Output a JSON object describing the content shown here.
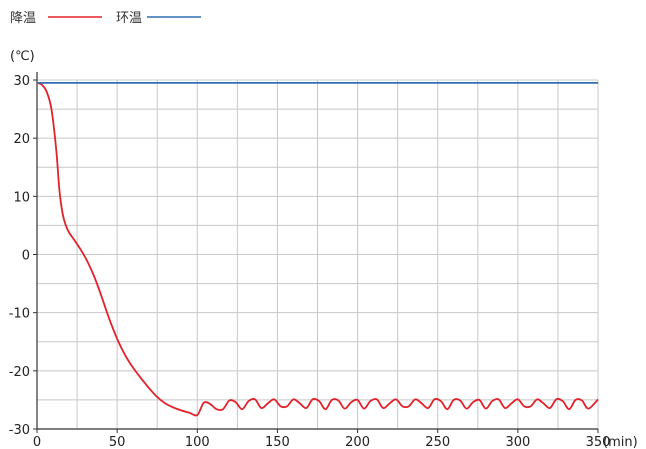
{
  "chart_data": {
    "type": "line",
    "legend": [
      {
        "label": "降温",
        "color": "#e3212b"
      },
      {
        "label": "环温",
        "color": "#2f6fb3"
      }
    ],
    "y_unit": "(℃)",
    "x_unit": "(min)",
    "xlim": [
      0,
      350
    ],
    "ylim": [
      -30,
      30
    ],
    "x_ticks": [
      "0",
      "50",
      "100",
      "150",
      "200",
      "250",
      "300",
      "350"
    ],
    "y_ticks": [
      "30",
      "20",
      "10",
      "0",
      "-10",
      "-20",
      "-30"
    ],
    "grid": true,
    "legend_position": "top-left",
    "series": [
      {
        "name": "降温",
        "color": "#e3212b",
        "x": [
          0,
          3,
          6,
          9,
          12,
          14,
          16,
          18,
          20,
          24,
          28,
          32,
          36,
          40,
          45,
          50,
          55,
          60,
          65,
          70,
          75,
          80,
          85,
          90,
          95,
          100,
          104,
          108,
          112,
          116,
          120,
          124,
          128,
          132,
          136,
          140,
          144,
          148,
          152,
          156,
          160,
          164,
          168,
          172,
          176,
          180,
          184,
          188,
          192,
          196,
          200,
          204,
          208,
          212,
          216,
          220,
          224,
          228,
          232,
          236,
          240,
          244,
          248,
          252,
          256,
          260,
          264,
          268,
          272,
          276,
          280,
          284,
          288,
          292,
          296,
          300,
          304,
          308,
          312,
          316,
          320,
          324,
          328,
          332,
          336,
          340,
          344,
          350
        ],
        "y": [
          29.5,
          29.2,
          28,
          25,
          18,
          11,
          7,
          5,
          3.8,
          2.2,
          0.5,
          -1.5,
          -4,
          -7,
          -11,
          -14.5,
          -17.3,
          -19.5,
          -21.3,
          -23,
          -24.5,
          -25.6,
          -26.3,
          -26.8,
          -27.2,
          -27.6,
          -25.5,
          -25.7,
          -26.6,
          -26.6,
          -25.1,
          -25.4,
          -26.6,
          -25.2,
          -24.9,
          -26.4,
          -25.6,
          -24.9,
          -26.1,
          -26.1,
          -24.9,
          -25.6,
          -26.4,
          -24.9,
          -25.2,
          -26.6,
          -25.0,
          -25.1,
          -26.5,
          -25.4,
          -25.0,
          -26.5,
          -25.2,
          -24.9,
          -26.4,
          -25.6,
          -24.9,
          -26.1,
          -26.1,
          -24.9,
          -25.6,
          -26.4,
          -24.9,
          -25.2,
          -26.6,
          -25.0,
          -25.1,
          -26.5,
          -25.4,
          -25.0,
          -26.5,
          -25.2,
          -24.9,
          -26.4,
          -25.6,
          -24.9,
          -26.1,
          -26.1,
          -24.9,
          -25.6,
          -26.4,
          -24.9,
          -25.2,
          -26.6,
          -25.0,
          -25.1,
          -26.5,
          -24.9
        ]
      },
      {
        "name": "环温",
        "color": "#2f6fb3",
        "x": [
          0,
          350
        ],
        "y": [
          29.5,
          29.5
        ]
      }
    ]
  }
}
